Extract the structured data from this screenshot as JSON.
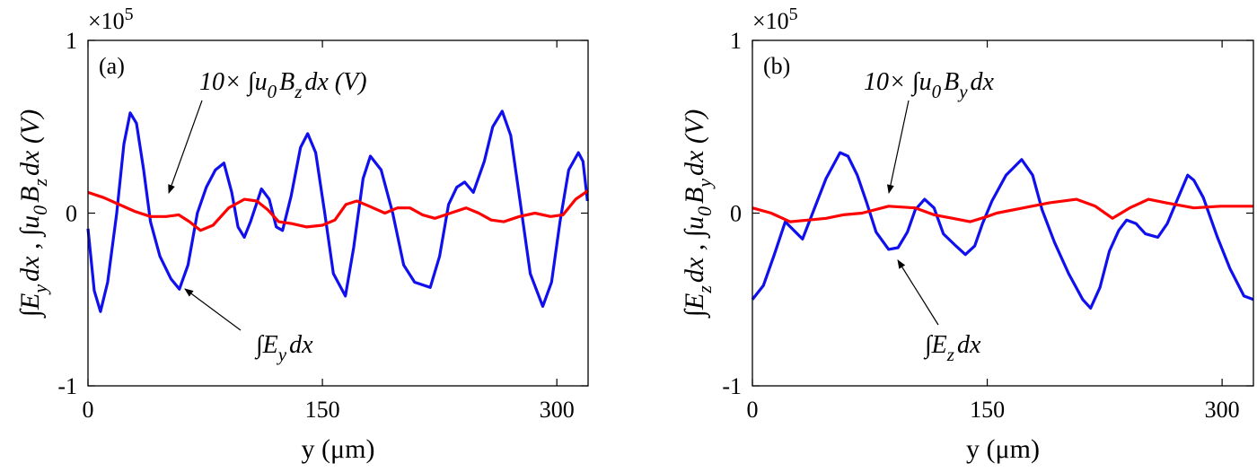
{
  "chart_data": [
    {
      "type": "line",
      "panel_label": "(a)",
      "y_multiplier": {
        "base": "×10",
        "exponent": "5"
      },
      "xlabel": "y (μm)",
      "ylabel_parts": [
        "∫E",
        "y",
        "dx , ∫u",
        "0",
        "B",
        "z",
        "dx (V)"
      ],
      "annotations": [
        {
          "parts": [
            "10× ∫u",
            "0",
            "B",
            "z",
            "dx (V)"
          ]
        },
        {
          "parts": [
            "∫E",
            "y",
            "dx"
          ]
        }
      ],
      "xlim": [
        0,
        320
      ],
      "ylim": [
        -1,
        1
      ],
      "xticks": [
        0,
        150,
        300
      ],
      "yticks": [
        -1,
        0,
        1
      ],
      "series": [
        {
          "color": "#1010ee",
          "x": [
            0,
            4,
            8,
            12.6,
            18.4,
            23,
            27,
            31,
            35.6,
            40,
            46,
            53,
            58.5,
            64,
            70,
            75.7,
            81.5,
            87,
            92,
            96,
            100,
            104,
            111,
            116,
            120.5,
            124.5,
            130,
            136,
            140.6,
            145.7,
            151.5,
            157,
            164.7,
            170,
            176,
            180.7,
            187.6,
            195,
            202,
            209,
            219,
            225,
            230.7,
            236,
            241,
            246.6,
            253.6,
            259,
            265,
            270.5,
            276,
            283,
            291,
            296.6,
            302,
            307.6,
            313.8,
            316.7,
            319.6
          ],
          "values": [
            -0.09,
            -0.45,
            -0.57,
            -0.4,
            0.0,
            0.4,
            0.58,
            0.52,
            0.25,
            -0.05,
            -0.25,
            -0.38,
            -0.44,
            -0.3,
            0.0,
            0.15,
            0.25,
            0.29,
            0.12,
            -0.08,
            -0.14,
            -0.05,
            0.14,
            0.08,
            -0.08,
            -0.1,
            0.1,
            0.38,
            0.46,
            0.35,
            0.0,
            -0.35,
            -0.48,
            -0.2,
            0.2,
            0.33,
            0.25,
            0.0,
            -0.3,
            -0.4,
            -0.43,
            -0.25,
            0.05,
            0.15,
            0.18,
            0.12,
            0.3,
            0.5,
            0.59,
            0.45,
            0.1,
            -0.35,
            -0.54,
            -0.4,
            -0.05,
            0.25,
            0.35,
            0.3,
            0.07
          ]
        },
        {
          "color": "#ff0000",
          "x": [
            0,
            10,
            20,
            30,
            40,
            50,
            58,
            65,
            72,
            80,
            90,
            100,
            108,
            115,
            122,
            130,
            140,
            150,
            158,
            165,
            172,
            180,
            190,
            198,
            206,
            214,
            222,
            232,
            242,
            250,
            258,
            266,
            276,
            286,
            296,
            304,
            312,
            320
          ],
          "values": [
            0.12,
            0.09,
            0.05,
            0.01,
            -0.02,
            -0.02,
            -0.01,
            -0.05,
            -0.1,
            -0.07,
            0.03,
            0.08,
            0.07,
            0.02,
            -0.05,
            -0.06,
            -0.08,
            -0.07,
            -0.04,
            0.05,
            0.07,
            0.04,
            0.0,
            0.03,
            0.03,
            -0.01,
            -0.03,
            0.0,
            0.03,
            0.0,
            -0.04,
            -0.05,
            -0.02,
            0.0,
            -0.02,
            -0.01,
            0.08,
            0.13
          ]
        }
      ]
    },
    {
      "type": "line",
      "panel_label": "(b)",
      "y_multiplier": {
        "base": "×10",
        "exponent": "5"
      },
      "xlabel": "y (μm)",
      "ylabel_parts": [
        "∫E",
        "z",
        "dx , ∫u",
        "0",
        "B",
        "y",
        "dx (V)"
      ],
      "annotations": [
        {
          "parts": [
            "10× ∫u",
            "0",
            "B",
            "y",
            "dx"
          ]
        },
        {
          "parts": [
            "∫E",
            "z",
            "dx"
          ]
        }
      ],
      "xlim": [
        0,
        320
      ],
      "ylim": [
        -1,
        1
      ],
      "xticks": [
        0,
        150,
        300
      ],
      "yticks": [
        -1,
        0,
        1
      ],
      "series": [
        {
          "color": "#1010ee",
          "x": [
            0,
            7,
            14,
            21,
            32,
            38,
            47,
            56,
            61,
            67,
            73,
            79,
            87,
            93,
            99,
            104,
            110,
            116,
            122,
            130,
            136,
            142,
            147,
            153,
            162,
            172,
            179,
            185,
            193,
            202,
            211,
            216,
            222,
            228,
            234,
            239,
            245,
            251,
            259,
            265,
            271,
            278,
            282,
            288,
            297,
            305,
            314,
            320
          ],
          "values": [
            -0.5,
            -0.42,
            -0.24,
            -0.05,
            -0.15,
            -0.01,
            0.2,
            0.35,
            0.33,
            0.22,
            0.06,
            -0.11,
            -0.21,
            -0.2,
            -0.11,
            0.02,
            0.08,
            0.03,
            -0.12,
            -0.19,
            -0.24,
            -0.19,
            -0.06,
            0.07,
            0.22,
            0.31,
            0.22,
            0.02,
            -0.17,
            -0.35,
            -0.5,
            -0.55,
            -0.43,
            -0.22,
            -0.1,
            -0.04,
            -0.06,
            -0.12,
            -0.14,
            -0.06,
            0.07,
            0.22,
            0.19,
            0.09,
            -0.14,
            -0.32,
            -0.48,
            -0.5
          ]
        },
        {
          "color": "#ff0000",
          "x": [
            0,
            12,
            24,
            36,
            47,
            58,
            70,
            87,
            104,
            116,
            128,
            139,
            150,
            156,
            173,
            190,
            207,
            219,
            230,
            241,
            253,
            264,
            282,
            299,
            320
          ],
          "values": [
            0.03,
            0.0,
            -0.05,
            -0.04,
            -0.03,
            -0.01,
            0.0,
            0.04,
            0.03,
            -0.01,
            -0.03,
            -0.05,
            -0.02,
            0.0,
            0.03,
            0.06,
            0.08,
            0.04,
            -0.03,
            0.03,
            0.08,
            0.06,
            0.03,
            0.04,
            0.04
          ]
        }
      ]
    }
  ]
}
